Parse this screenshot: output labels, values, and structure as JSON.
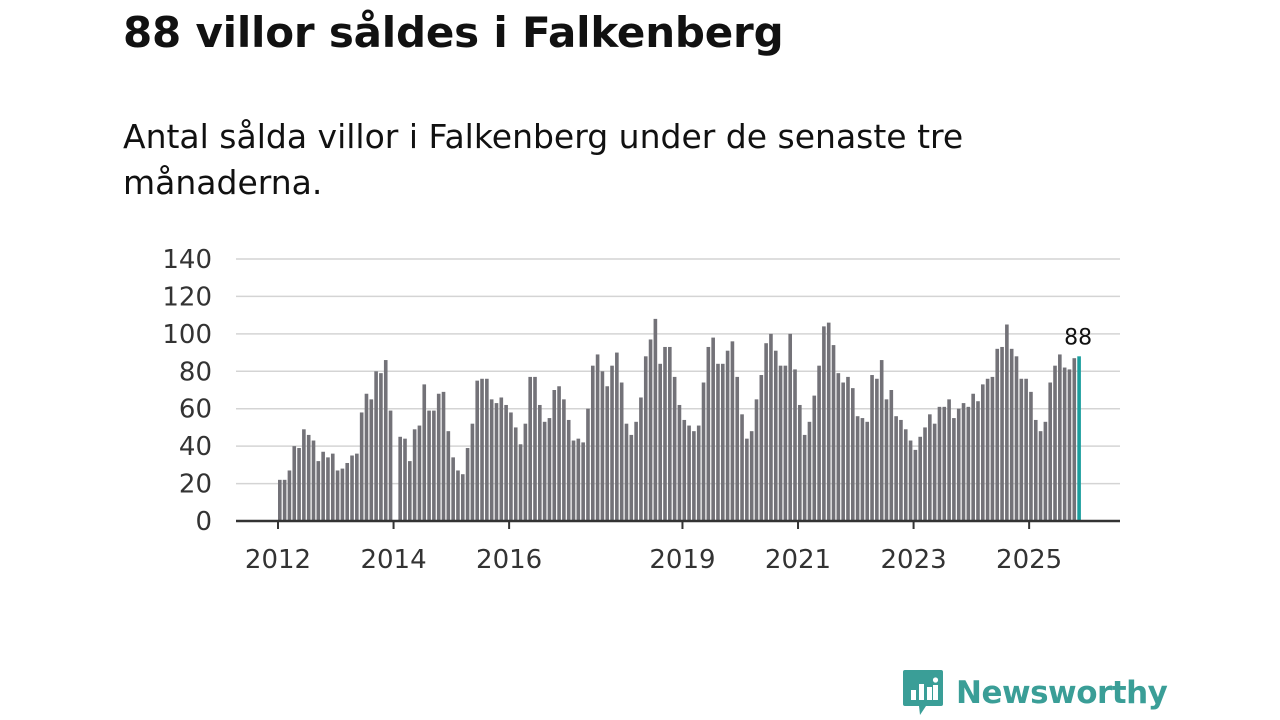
{
  "title": "88 villor såldes i Falkenberg",
  "subtitle": "Antal sålda villor i Falkenberg under de senaste tre månaderna.",
  "logo_text": "Newsworthy",
  "colors": {
    "bar": "#737278",
    "highlight": "#1a9e9e",
    "grid": "#d4d4d4",
    "axis": "#333333",
    "brand": "#3a9e97"
  },
  "chart_data": {
    "type": "bar",
    "title": "88 villor såldes i Falkenberg",
    "xlabel": "",
    "ylabel": "",
    "ylim": [
      0,
      140
    ],
    "yticks": [
      0,
      20,
      40,
      60,
      80,
      100,
      120,
      140
    ],
    "xticks": [
      {
        "label": "2012",
        "year": 2012
      },
      {
        "label": "2014",
        "year": 2014
      },
      {
        "label": "2016",
        "year": 2016
      },
      {
        "label": "2019",
        "year": 2019
      },
      {
        "label": "2021",
        "year": 2021
      },
      {
        "label": "2023",
        "year": 2023
      },
      {
        "label": "2025",
        "year": 2025
      }
    ],
    "start": {
      "year": 2012,
      "month": 1
    },
    "values": [
      22,
      22,
      27,
      40,
      39,
      49,
      46,
      43,
      32,
      37,
      34,
      36,
      27,
      28,
      31,
      35,
      36,
      58,
      68,
      65,
      80,
      79,
      86,
      59,
      null,
      45,
      44,
      32,
      49,
      51,
      73,
      59,
      59,
      68,
      69,
      48,
      34,
      27,
      25,
      39,
      52,
      75,
      76,
      76,
      65,
      63,
      66,
      62,
      58,
      50,
      41,
      52,
      77,
      77,
      62,
      53,
      55,
      70,
      72,
      65,
      54,
      43,
      44,
      42,
      60,
      83,
      89,
      80,
      72,
      83,
      90,
      74,
      52,
      46,
      53,
      66,
      88,
      97,
      108,
      84,
      93,
      93,
      77,
      62,
      54,
      51,
      48,
      51,
      74,
      93,
      98,
      84,
      84,
      91,
      96,
      77,
      57,
      44,
      48,
      65,
      78,
      95,
      100,
      91,
      83,
      83,
      100,
      81,
      62,
      46,
      53,
      67,
      83,
      104,
      106,
      94,
      79,
      74,
      77,
      71,
      56,
      55,
      53,
      78,
      76,
      86,
      65,
      70,
      56,
      54,
      49,
      43,
      38,
      45,
      50,
      57,
      52,
      61,
      61,
      65,
      55,
      60,
      63,
      61,
      68,
      64,
      73,
      76,
      77,
      92,
      93,
      105,
      92,
      88,
      76,
      76,
      69,
      54,
      48,
      53,
      74,
      83,
      89,
      82,
      81,
      87,
      88
    ],
    "highlight_last": true,
    "last_label": "88"
  }
}
